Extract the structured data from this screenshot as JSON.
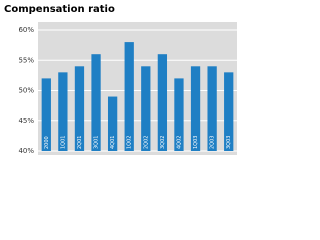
{
  "chart_data": {
    "type": "bar",
    "title": "Compensation ratio",
    "categories": [
      "2000",
      "1Q01",
      "2Q01",
      "3Q01",
      "4Q01",
      "1Q02",
      "2Q02",
      "3Q02",
      "4Q02",
      "1Q03",
      "2Q03",
      "3Q03"
    ],
    "values": [
      52,
      53,
      54,
      56,
      49,
      58,
      54,
      56,
      52,
      54,
      54,
      53
    ],
    "color": "#1f7fc4",
    "ylim": [
      40,
      60
    ],
    "yticks": [
      {
        "value": 40,
        "label": "40%"
      },
      {
        "value": 45,
        "label": "45%"
      },
      {
        "value": 50,
        "label": "50%"
      },
      {
        "value": 55,
        "label": "55%"
      },
      {
        "value": 60,
        "label": "60%"
      }
    ],
    "grid": true
  }
}
